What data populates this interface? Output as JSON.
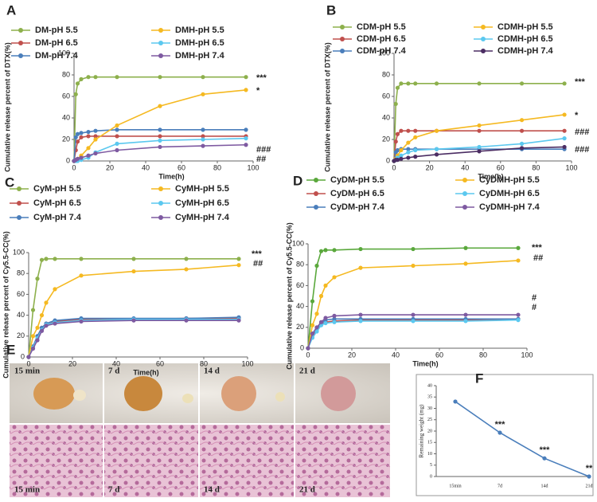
{
  "chart_data": [
    {
      "type": "line",
      "panel": "A",
      "ylabel": "Cumulative release percent of DTX(%)",
      "xlabel": "Time(h)",
      "x": [
        0,
        1,
        2,
        4,
        8,
        12,
        24,
        48,
        72,
        96
      ],
      "xlim": [
        0,
        100
      ],
      "xticks": [
        0,
        20,
        40,
        60,
        80,
        100
      ],
      "ylim": [
        0,
        100
      ],
      "yticks": [
        0,
        20,
        40,
        60,
        80,
        100
      ],
      "grid": false,
      "series": [
        {
          "name": "DM-pH 5.5",
          "color": "#8db04c",
          "values": [
            0,
            62,
            72,
            76,
            78,
            78,
            78,
            78,
            78,
            78
          ]
        },
        {
          "name": "DM-pH 6.5",
          "color": "#c0504d",
          "values": [
            0,
            10,
            18,
            22,
            23,
            23,
            23,
            23,
            23,
            23
          ]
        },
        {
          "name": "DM-pH 7.4",
          "color": "#4a7ebb",
          "values": [
            0,
            22,
            25,
            26,
            27,
            28,
            29,
            29,
            29,
            29
          ]
        },
        {
          "name": "DMH-pH 5.5",
          "color": "#f5b921",
          "values": [
            0,
            1,
            2,
            5,
            12,
            20,
            33,
            51,
            62,
            66
          ]
        },
        {
          "name": "DMH-pH 6.5",
          "color": "#5bc8ef",
          "values": [
            0,
            0,
            0,
            1,
            3,
            8,
            16,
            19,
            20,
            21
          ]
        },
        {
          "name": "DMH-pH 7.4",
          "color": "#7e5aa1",
          "values": [
            0,
            1,
            2,
            3,
            5,
            7,
            10,
            13,
            14,
            15
          ]
        }
      ],
      "annotations": [
        "***",
        "*",
        "###",
        "##"
      ]
    },
    {
      "type": "line",
      "panel": "B",
      "ylabel": "Cumulative release percent of DTX(%)",
      "xlabel": "Time(h)",
      "x": [
        0,
        1,
        2,
        4,
        8,
        12,
        24,
        48,
        72,
        96
      ],
      "xlim": [
        0,
        100
      ],
      "xticks": [
        0,
        20,
        40,
        60,
        80,
        100
      ],
      "ylim": [
        0,
        100
      ],
      "yticks": [
        0,
        20,
        40,
        60,
        80,
        100
      ],
      "grid": false,
      "series": [
        {
          "name": "CDM-pH 5.5",
          "color": "#8db04c",
          "values": [
            0,
            53,
            68,
            72,
            72,
            72,
            72,
            72,
            72,
            72
          ]
        },
        {
          "name": "CDM-pH 6.5",
          "color": "#c0504d",
          "values": [
            0,
            18,
            25,
            28,
            28,
            28,
            28,
            28,
            28,
            28
          ]
        },
        {
          "name": "CDM-pH 7.4",
          "color": "#4a7ebb",
          "values": [
            0,
            8,
            10,
            11,
            11,
            11,
            11,
            11,
            11,
            11
          ]
        },
        {
          "name": "CDMH-pH 5.5",
          "color": "#f5b921",
          "values": [
            0,
            2,
            5,
            10,
            17,
            22,
            28,
            33,
            38,
            43
          ]
        },
        {
          "name": "CDMH-pH 6.5",
          "color": "#5bc8ef",
          "values": [
            0,
            1,
            3,
            5,
            8,
            10,
            11,
            13,
            16,
            21
          ]
        },
        {
          "name": "CDMH-pH 7.4",
          "color": "#4b2d63",
          "values": [
            0,
            1,
            1,
            2,
            3,
            4,
            6,
            9,
            12,
            13
          ]
        }
      ],
      "annotations": [
        "***",
        "*",
        "###",
        "###"
      ]
    },
    {
      "type": "line",
      "panel": "C",
      "ylabel": "Cumulative release percent of Cy5.5-CC(%)",
      "xlabel": "Time(h)",
      "x": [
        0,
        2,
        4,
        6,
        8,
        12,
        24,
        48,
        72,
        96
      ],
      "xlim": [
        0,
        100
      ],
      "xticks": [
        0,
        20,
        40,
        60,
        80,
        100
      ],
      "ylim": [
        0,
        100
      ],
      "yticks": [
        0,
        20,
        40,
        60,
        80,
        100
      ],
      "grid": false,
      "series": [
        {
          "name": "CyM-pH 5.5",
          "color": "#8db04c",
          "values": [
            0,
            45,
            75,
            93,
            94,
            94,
            94,
            94,
            94,
            94
          ]
        },
        {
          "name": "CyM-pH 6.5",
          "color": "#c0504d",
          "values": [
            0,
            10,
            20,
            28,
            32,
            34,
            36,
            36,
            37,
            37
          ]
        },
        {
          "name": "CyM-pH 7.4",
          "color": "#4a7ebb",
          "values": [
            0,
            10,
            20,
            28,
            32,
            35,
            37,
            37,
            37,
            38
          ]
        },
        {
          "name": "CyMH-pH 5.5",
          "color": "#f5b921",
          "values": [
            0,
            20,
            28,
            40,
            52,
            65,
            78,
            82,
            84,
            88
          ]
        },
        {
          "name": "CyMH-pH 6.5",
          "color": "#5bc8ef",
          "values": [
            0,
            9,
            18,
            26,
            31,
            33,
            35,
            36,
            36,
            36
          ]
        },
        {
          "name": "CyMH-pH 7.4",
          "color": "#7e5aa1",
          "values": [
            0,
            8,
            16,
            25,
            30,
            32,
            34,
            35,
            35,
            35
          ]
        }
      ],
      "annotations": [
        "***",
        "##"
      ]
    },
    {
      "type": "line",
      "panel": "D",
      "ylabel": "Cumulative release percent of Cy5.5-CC(%)",
      "xlabel": "Time(h)",
      "x": [
        0,
        2,
        4,
        6,
        8,
        12,
        24,
        48,
        72,
        96
      ],
      "xlim": [
        0,
        100
      ],
      "xticks": [
        0,
        20,
        40,
        60,
        80,
        100
      ],
      "ylim": [
        0,
        100
      ],
      "yticks": [
        0,
        20,
        40,
        60,
        80,
        100
      ],
      "grid": false,
      "series": [
        {
          "name": "CyDM-pH 5.5",
          "color": "#5aa83c",
          "values": [
            0,
            45,
            79,
            93,
            94,
            94,
            95,
            95,
            96,
            96
          ]
        },
        {
          "name": "CyDM-pH 6.5",
          "color": "#c0504d",
          "values": [
            0,
            12,
            18,
            23,
            25,
            26,
            27,
            27,
            27,
            28
          ]
        },
        {
          "name": "CyDM-pH 7.4",
          "color": "#4a7ebb",
          "values": [
            0,
            13,
            18,
            24,
            27,
            28,
            28,
            28,
            28,
            28
          ]
        },
        {
          "name": "CyDMH-pH 5.5",
          "color": "#f5b921",
          "values": [
            0,
            22,
            33,
            50,
            60,
            68,
            77,
            79,
            81,
            84
          ]
        },
        {
          "name": "CyDMH-pH 6.5",
          "color": "#5bc8ef",
          "values": [
            0,
            10,
            16,
            22,
            24,
            25,
            26,
            26,
            26,
            27
          ]
        },
        {
          "name": "CyDMH-pH 7.4",
          "color": "#7e5aa1",
          "values": [
            0,
            14,
            20,
            25,
            29,
            31,
            32,
            32,
            32,
            32
          ]
        }
      ],
      "annotations": [
        "***",
        "##",
        "#",
        "#"
      ]
    },
    {
      "type": "line",
      "panel": "F",
      "ylabel": "Remaining weight (mg)",
      "categories": [
        "15min",
        "7d",
        "14d",
        "21d"
      ],
      "ylim": [
        0,
        40
      ],
      "yticks": [
        0,
        5,
        10,
        15,
        20,
        25,
        30,
        35,
        40
      ],
      "grid": false,
      "series": [
        {
          "color": "#4a7ebb",
          "values": [
            33,
            19.3,
            8,
            0
          ]
        }
      ],
      "annotations": [
        "***",
        "***",
        "**"
      ]
    }
  ],
  "figure": {
    "panel_e": "E",
    "top_labels": [
      "15 min",
      "7 d",
      "14 d",
      "21 d"
    ],
    "bottom_labels": [
      "15 min",
      "7 d",
      "14 d",
      "21 d"
    ]
  }
}
